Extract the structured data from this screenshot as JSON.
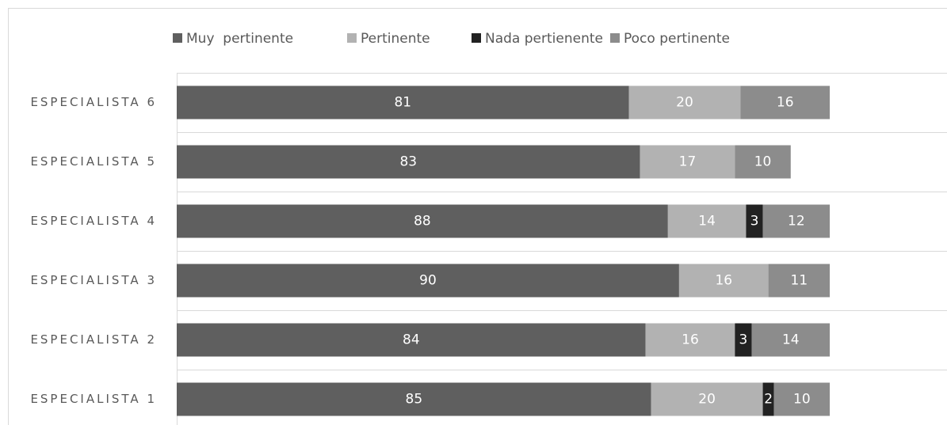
{
  "chart_data": {
    "type": "stacked_barh",
    "categories": [
      "ESPECIALISTA 6",
      "ESPECIALISTA 5",
      "ESPECIALISTA 4",
      "ESPECIALISTA 3",
      "ESPECIALISTA 2",
      "ESPECIALISTA 1"
    ],
    "series": [
      {
        "name": "Muy  pertinente",
        "color": "#5f5f5f",
        "values": [
          81,
          83,
          88,
          90,
          84,
          85
        ]
      },
      {
        "name": "Pertinente",
        "color": "#b2b2b2",
        "values": [
          20,
          17,
          14,
          16,
          16,
          20
        ]
      },
      {
        "name": "Nada pertienente",
        "color": "#222222",
        "values": [
          null,
          null,
          3,
          null,
          3,
          2
        ]
      },
      {
        "name": "Poco pertinente",
        "color": "#8c8c8c",
        "values": [
          16,
          10,
          12,
          11,
          14,
          10
        ]
      }
    ],
    "xlim": [
      0,
      138
    ],
    "grid": true,
    "legend": "top"
  }
}
